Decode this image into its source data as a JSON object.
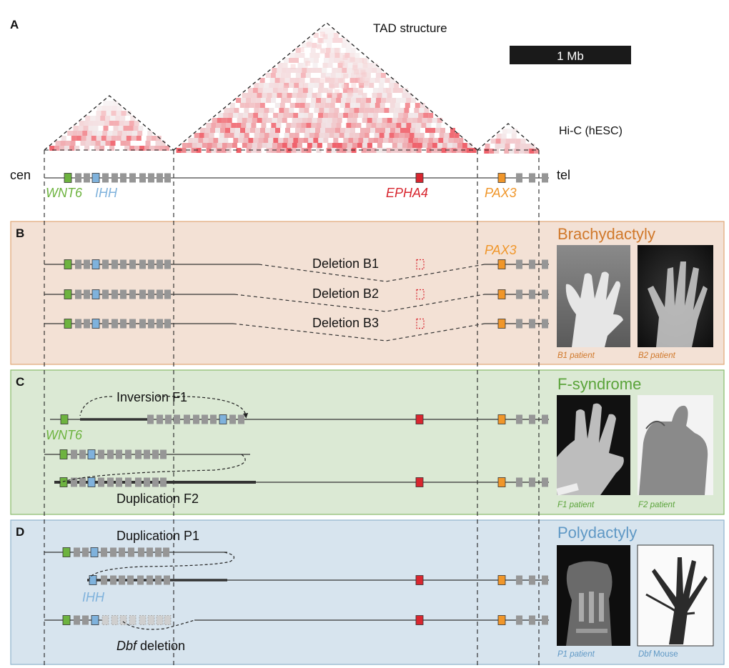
{
  "panel_a": {
    "letter": "A",
    "tad_label": "TAD structure",
    "scale_label": "1 Mb",
    "hic_label": "Hi-C (hESC)",
    "cen": "cen",
    "tel": "tel",
    "genes": {
      "wnt6": "WNT6",
      "ihh": "IHH",
      "epha4": "EPHA4",
      "pax3": "PAX3"
    }
  },
  "panel_b": {
    "letter": "B",
    "title": "Brachydactyly",
    "gene_label": "PAX3",
    "deletions": [
      "Deletion B1",
      "Deletion B2",
      "Deletion B3"
    ],
    "captions": [
      "B1 patient",
      "B2 patient"
    ]
  },
  "panel_c": {
    "letter": "C",
    "title": "F-syndrome",
    "inversion": "Inversion F1",
    "gene_label": "WNT6",
    "duplication": "Duplication F2",
    "captions": [
      "F1 patient",
      "F2 patient"
    ]
  },
  "panel_d": {
    "letter": "D",
    "title": "Polydactyly",
    "duplication": "Duplication P1",
    "gene_label": "IHH",
    "deletion_italic": "Dbf",
    "deletion_rest": " deletion",
    "captions": [
      "P1 patient"
    ],
    "caption_mouse_italic": "Dbf",
    "caption_mouse_rest": " Mouse"
  },
  "colors": {
    "wnt6": "#6db33f",
    "ihh": "#7fb2dc",
    "epha4": "#d8262f",
    "pax3": "#f0962a",
    "gene_gray": "#969696",
    "panel_b_bg": "#f3e1d5",
    "panel_b_border": "#e0a676",
    "panel_b_text": "#d0782a",
    "panel_c_bg": "#dbe9d4",
    "panel_c_border": "#88bb6a",
    "panel_c_text": "#5aa33a",
    "panel_d_bg": "#d7e4ee",
    "panel_d_border": "#8fb3cc",
    "panel_d_text": "#5f98c5"
  }
}
